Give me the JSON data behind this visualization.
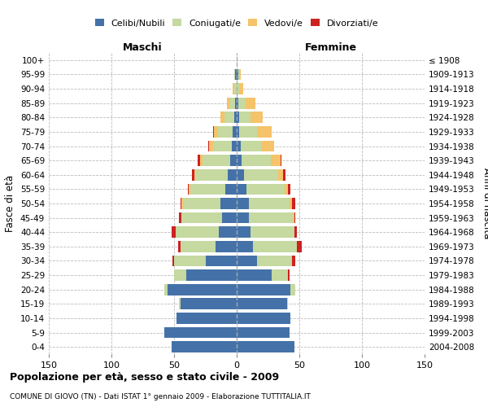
{
  "age_groups": [
    "0-4",
    "5-9",
    "10-14",
    "15-19",
    "20-24",
    "25-29",
    "30-34",
    "35-39",
    "40-44",
    "45-49",
    "50-54",
    "55-59",
    "60-64",
    "65-69",
    "70-74",
    "75-79",
    "80-84",
    "85-89",
    "90-94",
    "95-99",
    "100+"
  ],
  "birth_years": [
    "2004-2008",
    "1999-2003",
    "1994-1998",
    "1989-1993",
    "1984-1988",
    "1979-1983",
    "1974-1978",
    "1969-1973",
    "1964-1968",
    "1959-1963",
    "1954-1958",
    "1949-1953",
    "1944-1948",
    "1939-1943",
    "1934-1938",
    "1929-1933",
    "1924-1928",
    "1919-1923",
    "1914-1918",
    "1909-1913",
    "≤ 1908"
  ],
  "colors": {
    "celibi": "#4472a8",
    "coniugati": "#c5d9a0",
    "vedovi": "#f5c36a",
    "divorziati": "#cc2222"
  },
  "male": {
    "celibi": [
      52,
      58,
      48,
      45,
      55,
      40,
      25,
      17,
      14,
      12,
      13,
      9,
      7,
      5,
      4,
      3,
      2,
      1,
      0,
      1,
      0
    ],
    "coniugati": [
      0,
      0,
      0,
      1,
      3,
      10,
      25,
      28,
      35,
      32,
      30,
      28,
      26,
      22,
      15,
      12,
      8,
      5,
      2,
      1,
      0
    ],
    "vedovi": [
      0,
      0,
      0,
      0,
      0,
      0,
      0,
      0,
      0,
      0,
      1,
      1,
      1,
      2,
      3,
      3,
      3,
      2,
      1,
      0,
      0
    ],
    "divorziati": [
      0,
      0,
      0,
      0,
      0,
      0,
      1,
      2,
      3,
      2,
      1,
      1,
      2,
      2,
      1,
      1,
      0,
      0,
      0,
      0,
      0
    ]
  },
  "female": {
    "celibi": [
      46,
      42,
      43,
      40,
      43,
      28,
      16,
      13,
      11,
      10,
      10,
      8,
      6,
      4,
      3,
      2,
      2,
      1,
      0,
      1,
      0
    ],
    "coniugati": [
      0,
      0,
      0,
      1,
      4,
      13,
      28,
      35,
      35,
      35,
      32,
      30,
      27,
      23,
      17,
      14,
      9,
      6,
      2,
      1,
      0
    ],
    "vedovi": [
      0,
      0,
      0,
      0,
      0,
      0,
      0,
      0,
      0,
      1,
      2,
      3,
      4,
      8,
      10,
      12,
      10,
      8,
      3,
      1,
      0
    ],
    "divorziati": [
      0,
      0,
      0,
      0,
      0,
      1,
      3,
      4,
      2,
      1,
      3,
      2,
      2,
      1,
      0,
      0,
      0,
      0,
      0,
      0,
      0
    ]
  },
  "title": "Popolazione per età, sesso e stato civile - 2009",
  "subtitle": "COMUNE DI GIOVO (TN) - Dati ISTAT 1° gennaio 2009 - Elaborazione TUTTITALIA.IT",
  "xlabel_left": "Maschi",
  "xlabel_right": "Femmine",
  "ylabel_left": "Fasce di età",
  "ylabel_right": "Anni di nascita",
  "xlim": 150,
  "legend_labels": [
    "Celibi/Nubili",
    "Coniugati/e",
    "Vedovi/e",
    "Divorziati/e"
  ]
}
